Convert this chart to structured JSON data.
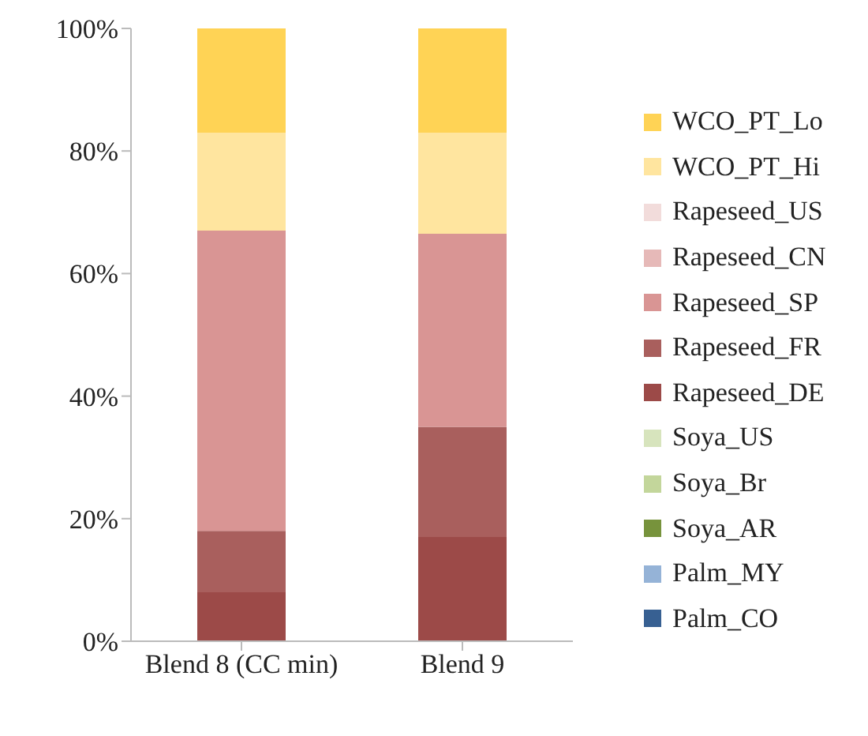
{
  "chart_data": {
    "type": "bar",
    "stacked": true,
    "categories": [
      "Blend 8 (CC min)",
      "Blend 9"
    ],
    "series": [
      {
        "name": "Palm_CO",
        "color": "#376092",
        "values": [
          0,
          0
        ]
      },
      {
        "name": "Palm_MY",
        "color": "#95b3d7",
        "values": [
          0,
          0
        ]
      },
      {
        "name": "Soya_AR",
        "color": "#77933c",
        "values": [
          0,
          0
        ]
      },
      {
        "name": "Soya_Br",
        "color": "#c3d69b",
        "values": [
          0,
          0
        ]
      },
      {
        "name": "Soya_US",
        "color": "#d7e4bd",
        "values": [
          0,
          0
        ]
      },
      {
        "name": "Rapeseed_DE",
        "color": "#9c4a48",
        "values": [
          8,
          17
        ]
      },
      {
        "name": "Rapeseed_FR",
        "color": "#a95f5d",
        "values": [
          10,
          18
        ]
      },
      {
        "name": "Rapeseed_SP",
        "color": "#d99594",
        "values": [
          49,
          31.5
        ]
      },
      {
        "name": "Rapeseed_CN",
        "color": "#e6b9b8",
        "values": [
          0,
          0
        ]
      },
      {
        "name": "Rapeseed_US",
        "color": "#f2dcdb",
        "values": [
          0,
          0
        ]
      },
      {
        "name": "WCO_PT_Hi",
        "color": "#ffe59f",
        "values": [
          16,
          16.5
        ]
      },
      {
        "name": "WCO_PT_Lo",
        "color": "#ffd355",
        "values": [
          17,
          17
        ]
      }
    ],
    "ylim": [
      0,
      100
    ],
    "yticks": [
      {
        "value": 0,
        "label": "0%"
      },
      {
        "value": 20,
        "label": "20%"
      },
      {
        "value": 40,
        "label": "40%"
      },
      {
        "value": 60,
        "label": "60%"
      },
      {
        "value": 80,
        "label": "80%"
      },
      {
        "value": 100,
        "label": "100%"
      }
    ],
    "grid": false,
    "legend": "right"
  }
}
